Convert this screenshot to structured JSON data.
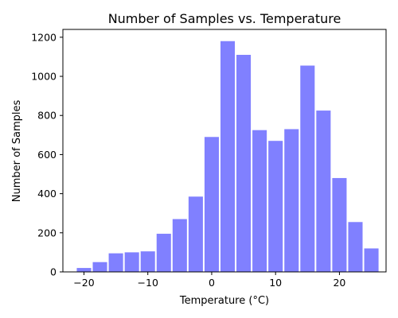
{
  "chart_data": {
    "type": "bar",
    "title": "Number of Samples vs. Temperature",
    "xlabel": "Temperature (°C)",
    "ylabel": "Number of Samples",
    "xlim": [
      -23.3,
      27.3
    ],
    "ylim": [
      0,
      1240
    ],
    "x_ticks": [
      -20,
      -10,
      0,
      10,
      20
    ],
    "x_tick_labels": [
      "−20",
      "−10",
      "0",
      "10",
      "20"
    ],
    "y_ticks": [
      0,
      200,
      400,
      600,
      800,
      1000,
      1200
    ],
    "y_tick_labels": [
      "0",
      "200",
      "400",
      "600",
      "800",
      "1000",
      "1200"
    ],
    "grid": false,
    "legend": "none",
    "bar_color": "#8080ff",
    "bin_width": 2.5,
    "bin_edges": [
      -21.25,
      -18.75,
      -16.25,
      -13.75,
      -11.25,
      -8.75,
      -6.25,
      -3.75,
      -1.25,
      1.25,
      3.75,
      6.25,
      8.75,
      11.25,
      13.75,
      16.25,
      18.75,
      21.25,
      23.75,
      26.25
    ],
    "values": [
      20,
      50,
      95,
      100,
      105,
      195,
      270,
      385,
      690,
      1180,
      1110,
      725,
      670,
      730,
      1055,
      825,
      480,
      255,
      120
    ]
  }
}
